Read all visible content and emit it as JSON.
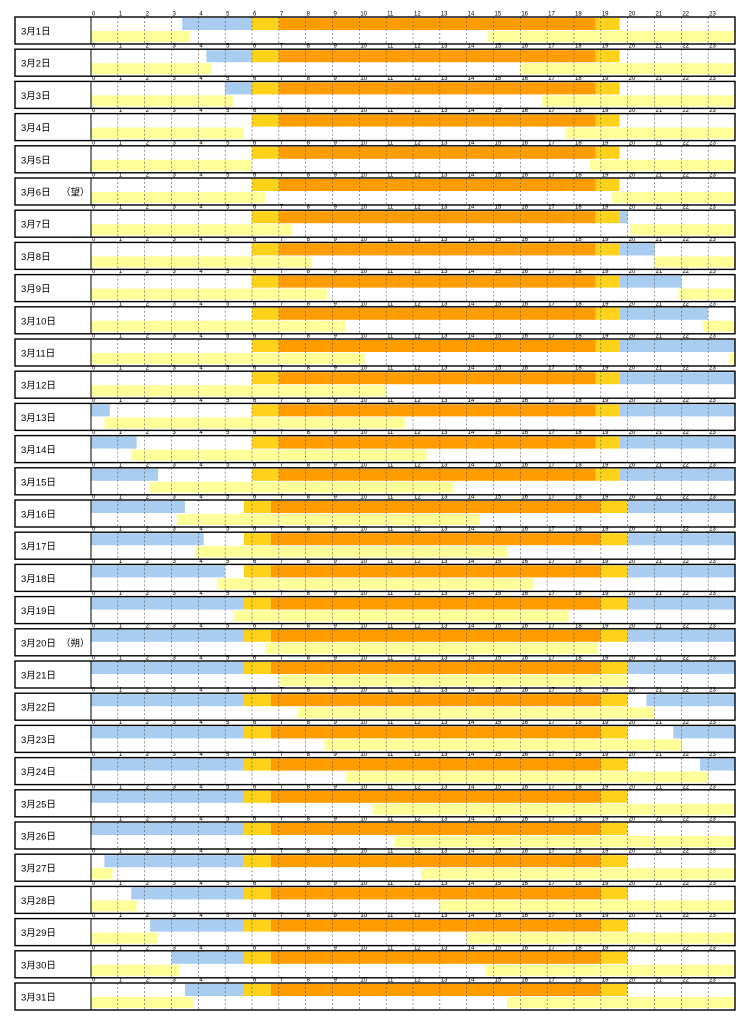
{
  "chart_data": {
    "type": "timeline",
    "hours": [
      "0",
      "1",
      "2",
      "3",
      "4",
      "5",
      "6",
      "7",
      "8",
      "9",
      "10",
      "11",
      "12",
      "13",
      "14",
      "15",
      "16",
      "17",
      "18",
      "19",
      "20",
      "21",
      "22",
      "23"
    ],
    "colors": {
      "night": "#a9cdf0",
      "twilight": "#ffd21a",
      "day": "#ff9c00",
      "moon": "#ffff99",
      "frame": "#000000",
      "grid": "#555555"
    },
    "days": [
      {
        "label": "3月1日",
        "note": "",
        "night": [
          [
            3.4,
            6
          ]
        ],
        "twilight": [
          [
            6,
            7
          ],
          [
            18.8,
            19.7
          ]
        ],
        "day": [
          [
            7,
            18.8
          ]
        ],
        "moon": [
          [
            0,
            3.7
          ],
          [
            14.8,
            24
          ]
        ]
      },
      {
        "label": "3月2日",
        "note": "",
        "night": [
          [
            4.3,
            6
          ]
        ],
        "twilight": [
          [
            6,
            7
          ],
          [
            18.8,
            19.7
          ]
        ],
        "day": [
          [
            7,
            18.8
          ]
        ],
        "moon": [
          [
            0,
            4.5
          ],
          [
            16,
            24
          ]
        ]
      },
      {
        "label": "3月3日",
        "note": "",
        "night": [
          [
            5,
            6
          ]
        ],
        "twilight": [
          [
            6,
            7
          ],
          [
            18.8,
            19.7
          ]
        ],
        "day": [
          [
            7,
            18.8
          ]
        ],
        "moon": [
          [
            0,
            5.3
          ],
          [
            16.8,
            24
          ]
        ]
      },
      {
        "label": "3月4日",
        "note": "",
        "night": [],
        "twilight": [
          [
            6,
            7
          ],
          [
            18.8,
            19.7
          ]
        ],
        "day": [
          [
            7,
            18.8
          ]
        ],
        "moon": [
          [
            0,
            5.7
          ],
          [
            17.7,
            24
          ]
        ]
      },
      {
        "label": "3月5日",
        "note": "",
        "night": [],
        "twilight": [
          [
            6,
            7
          ],
          [
            18.8,
            19.7
          ]
        ],
        "day": [
          [
            7,
            18.8
          ]
        ],
        "moon": [
          [
            0,
            6
          ],
          [
            18.6,
            24
          ]
        ]
      },
      {
        "label": "3月6日",
        "note": "（望）",
        "night": [],
        "twilight": [
          [
            6,
            7
          ],
          [
            18.8,
            19.7
          ]
        ],
        "day": [
          [
            7,
            18.8
          ]
        ],
        "moon": [
          [
            0,
            6.5
          ],
          [
            19.4,
            24
          ]
        ]
      },
      {
        "label": "3月7日",
        "note": "",
        "night": [
          [
            19.7,
            20
          ]
        ],
        "twilight": [
          [
            6,
            7
          ],
          [
            18.8,
            19.7
          ]
        ],
        "day": [
          [
            7,
            18.8
          ]
        ],
        "moon": [
          [
            0,
            7.5
          ],
          [
            20.1,
            24
          ]
        ]
      },
      {
        "label": "3月8日",
        "note": "",
        "night": [
          [
            19.7,
            21
          ]
        ],
        "twilight": [
          [
            6,
            7
          ],
          [
            18.8,
            19.7
          ]
        ],
        "day": [
          [
            7,
            18.8
          ]
        ],
        "moon": [
          [
            0,
            8.2
          ],
          [
            21,
            24
          ]
        ]
      },
      {
        "label": "3月9日",
        "note": "",
        "night": [
          [
            19.7,
            22
          ]
        ],
        "twilight": [
          [
            6,
            7
          ],
          [
            18.8,
            19.7
          ]
        ],
        "day": [
          [
            7,
            18.8
          ]
        ],
        "moon": [
          [
            0,
            8.8
          ],
          [
            21.9,
            24
          ]
        ]
      },
      {
        "label": "3月10日",
        "note": "",
        "night": [
          [
            19.7,
            23
          ]
        ],
        "twilight": [
          [
            6,
            7
          ],
          [
            18.8,
            19.7
          ]
        ],
        "day": [
          [
            7,
            18.8
          ]
        ],
        "moon": [
          [
            0,
            9.5
          ],
          [
            22.8,
            24
          ]
        ]
      },
      {
        "label": "3月11日",
        "note": "",
        "night": [
          [
            19.7,
            24
          ]
        ],
        "twilight": [
          [
            6,
            7
          ],
          [
            18.8,
            19.7
          ]
        ],
        "day": [
          [
            7,
            18.8
          ]
        ],
        "moon": [
          [
            0,
            10.2
          ],
          [
            23.8,
            24
          ]
        ]
      },
      {
        "label": "3月12日",
        "note": "",
        "night": [
          [
            19.7,
            24
          ]
        ],
        "twilight": [
          [
            6,
            7
          ],
          [
            18.8,
            19.7
          ]
        ],
        "day": [
          [
            7,
            18.8
          ]
        ],
        "moon": [
          [
            0,
            11
          ]
        ]
      },
      {
        "label": "3月13日",
        "note": "",
        "night": [
          [
            0,
            0.7
          ],
          [
            19.7,
            24
          ]
        ],
        "twilight": [
          [
            6,
            7
          ],
          [
            18.8,
            19.7
          ]
        ],
        "day": [
          [
            7,
            18.8
          ]
        ],
        "moon": [
          [
            0.5,
            11.7
          ]
        ]
      },
      {
        "label": "3月14日",
        "note": "",
        "night": [
          [
            0,
            1.7
          ],
          [
            19.7,
            24
          ]
        ],
        "twilight": [
          [
            6,
            7
          ],
          [
            18.8,
            19.7
          ]
        ],
        "day": [
          [
            7,
            18.8
          ]
        ],
        "moon": [
          [
            1.5,
            12.5
          ]
        ]
      },
      {
        "label": "3月15日",
        "note": "",
        "night": [
          [
            0,
            2.5
          ],
          [
            19.7,
            24
          ]
        ],
        "twilight": [
          [
            6,
            7
          ],
          [
            18.8,
            19.7
          ]
        ],
        "day": [
          [
            7,
            18.8
          ]
        ],
        "moon": [
          [
            2.2,
            13.5
          ]
        ]
      },
      {
        "label": "3月16日",
        "note": "",
        "night": [
          [
            0,
            3.5
          ],
          [
            20,
            24
          ]
        ],
        "twilight": [
          [
            5.7,
            6.7
          ],
          [
            19,
            20
          ]
        ],
        "day": [
          [
            6.7,
            19
          ]
        ],
        "moon": [
          [
            3.2,
            14.5
          ]
        ]
      },
      {
        "label": "3月17日",
        "note": "",
        "night": [
          [
            0,
            4.2
          ],
          [
            20,
            24
          ]
        ],
        "twilight": [
          [
            5.7,
            6.7
          ],
          [
            19,
            20
          ]
        ],
        "day": [
          [
            6.7,
            19
          ]
        ],
        "moon": [
          [
            3.9,
            15.5
          ]
        ]
      },
      {
        "label": "3月18日",
        "note": "",
        "night": [
          [
            0,
            5
          ],
          [
            20,
            24
          ]
        ],
        "twilight": [
          [
            5.7,
            6.7
          ],
          [
            19,
            20
          ]
        ],
        "day": [
          [
            6.7,
            19
          ]
        ],
        "moon": [
          [
            4.7,
            16.5
          ]
        ]
      },
      {
        "label": "3月19日",
        "note": "",
        "night": [
          [
            0,
            5.7
          ],
          [
            20,
            24
          ]
        ],
        "twilight": [
          [
            5.7,
            6.7
          ],
          [
            19,
            20
          ]
        ],
        "day": [
          [
            6.7,
            19
          ]
        ],
        "moon": [
          [
            5.3,
            17.8
          ]
        ]
      },
      {
        "label": "3月20日",
        "note": "（朔）",
        "night": [
          [
            0,
            5.7
          ],
          [
            20,
            24
          ]
        ],
        "twilight": [
          [
            5.7,
            6.7
          ],
          [
            19,
            20
          ]
        ],
        "day": [
          [
            6.7,
            19
          ]
        ],
        "moon": [
          [
            6.5,
            18.9
          ]
        ]
      },
      {
        "label": "3月21日",
        "note": "",
        "night": [
          [
            0,
            5.7
          ],
          [
            20,
            24
          ]
        ],
        "twilight": [
          [
            5.7,
            6.7
          ],
          [
            19,
            20
          ]
        ],
        "day": [
          [
            6.7,
            19
          ]
        ],
        "moon": [
          [
            7,
            20
          ]
        ]
      },
      {
        "label": "3月22日",
        "note": "",
        "night": [
          [
            0,
            5.7
          ],
          [
            20.7,
            24
          ]
        ],
        "twilight": [
          [
            5.7,
            6.7
          ],
          [
            19,
            20
          ]
        ],
        "day": [
          [
            6.7,
            19
          ]
        ],
        "moon": [
          [
            7.7,
            21
          ]
        ]
      },
      {
        "label": "3月23日",
        "note": "",
        "night": [
          [
            0,
            5.7
          ],
          [
            21.7,
            24
          ]
        ],
        "twilight": [
          [
            5.7,
            6.7
          ],
          [
            19,
            20
          ]
        ],
        "day": [
          [
            6.7,
            19
          ]
        ],
        "moon": [
          [
            8.7,
            22
          ]
        ]
      },
      {
        "label": "3月24日",
        "note": "",
        "night": [
          [
            0,
            5.7
          ],
          [
            22.7,
            24
          ]
        ],
        "twilight": [
          [
            5.7,
            6.7
          ],
          [
            19,
            20
          ]
        ],
        "day": [
          [
            6.7,
            19
          ]
        ],
        "moon": [
          [
            9.5,
            23
          ]
        ]
      },
      {
        "label": "3月25日",
        "note": "",
        "night": [
          [
            0,
            5.7
          ]
        ],
        "twilight": [
          [
            5.7,
            6.7
          ],
          [
            19,
            20
          ]
        ],
        "day": [
          [
            6.7,
            19
          ]
        ],
        "moon": [
          [
            10.5,
            24
          ]
        ]
      },
      {
        "label": "3月26日",
        "note": "",
        "night": [
          [
            0,
            5.7
          ]
        ],
        "twilight": [
          [
            5.7,
            6.7
          ],
          [
            19,
            20
          ]
        ],
        "day": [
          [
            6.7,
            19
          ]
        ],
        "moon": [
          [
            11.3,
            24
          ]
        ]
      },
      {
        "label": "3月27日",
        "note": "",
        "night": [
          [
            0.5,
            5.7
          ]
        ],
        "twilight": [
          [
            5.7,
            6.7
          ],
          [
            19,
            20
          ]
        ],
        "day": [
          [
            6.7,
            19
          ]
        ],
        "moon": [
          [
            0,
            0.8
          ],
          [
            12.3,
            24
          ]
        ]
      },
      {
        "label": "3月28日",
        "note": "",
        "night": [
          [
            1.5,
            5.7
          ]
        ],
        "twilight": [
          [
            5.7,
            6.7
          ],
          [
            19,
            20
          ]
        ],
        "day": [
          [
            6.7,
            19
          ]
        ],
        "moon": [
          [
            0,
            1.7
          ],
          [
            13,
            24
          ]
        ]
      },
      {
        "label": "3月29日",
        "note": "",
        "night": [
          [
            2.2,
            5.7
          ]
        ],
        "twilight": [
          [
            5.7,
            6.7
          ],
          [
            19,
            20
          ]
        ],
        "day": [
          [
            6.7,
            19
          ]
        ],
        "moon": [
          [
            0,
            2.5
          ],
          [
            14,
            24
          ]
        ]
      },
      {
        "label": "3月30日",
        "note": "",
        "night": [
          [
            3,
            5.7
          ]
        ],
        "twilight": [
          [
            5.7,
            6.7
          ],
          [
            19,
            20
          ]
        ],
        "day": [
          [
            6.7,
            19
          ]
        ],
        "moon": [
          [
            0,
            3.3
          ],
          [
            14.7,
            24
          ]
        ]
      },
      {
        "label": "3月31日",
        "note": "",
        "night": [
          [
            3.5,
            5.7
          ]
        ],
        "twilight": [
          [
            5.7,
            6.7
          ],
          [
            19,
            20
          ]
        ],
        "day": [
          [
            6.7,
            19
          ]
        ],
        "moon": [
          [
            0,
            3.8
          ],
          [
            15.5,
            24
          ]
        ]
      }
    ]
  }
}
